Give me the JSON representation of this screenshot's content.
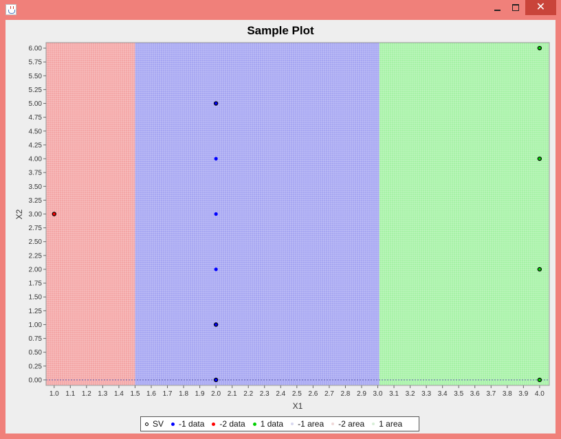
{
  "window": {
    "title": "",
    "icon": "java-icon",
    "controls": {
      "minimize": "minimize-icon",
      "maximize": "maximize-icon",
      "close": "✕"
    }
  },
  "colors": {
    "frame": "#f0807a",
    "region_neg2": "#f4a6a6",
    "region_neg1": "#a6a6f2",
    "region_pos1": "#a6f2a6",
    "point_neg1": "#0000ff",
    "point_neg2": "#ff0000",
    "point_pos1": "#00d000"
  },
  "chart_data": {
    "type": "scatter",
    "title": "Sample Plot",
    "xlabel": "X1",
    "ylabel": "X2",
    "xlim": [
      0.95,
      4.06
    ],
    "ylim": [
      -0.1,
      6.1
    ],
    "xticks": [
      1.0,
      1.1,
      1.2,
      1.3,
      1.4,
      1.5,
      1.6,
      1.7,
      1.8,
      1.9,
      2.0,
      2.1,
      2.2,
      2.3,
      2.4,
      2.5,
      2.6,
      2.7,
      2.8,
      2.9,
      3.0,
      3.1,
      3.2,
      3.3,
      3.4,
      3.5,
      3.6,
      3.7,
      3.8,
      3.9,
      4.0
    ],
    "yticks": [
      0.0,
      0.25,
      0.5,
      0.75,
      1.0,
      1.25,
      1.5,
      1.75,
      2.0,
      2.25,
      2.5,
      2.75,
      3.0,
      3.25,
      3.5,
      3.75,
      4.0,
      4.25,
      4.5,
      4.75,
      5.0,
      5.25,
      5.5,
      5.75,
      6.0
    ],
    "grid": true,
    "legend_position": "bottom",
    "regions": [
      {
        "name": "-2 area",
        "x": [
          0.95,
          1.5
        ],
        "color": "#f4a6a6"
      },
      {
        "name": "-1 area",
        "x": [
          1.5,
          3.01
        ],
        "color": "#a6a6f2"
      },
      {
        "name": "1 area",
        "x": [
          3.01,
          4.06
        ],
        "color": "#a6f2a6"
      }
    ],
    "series": [
      {
        "name": "SV",
        "marker": "outline",
        "color": "#000000",
        "points": [
          [
            2.0,
            5.0
          ],
          [
            2.0,
            1.0
          ],
          [
            2.0,
            0.0
          ],
          [
            4.0,
            6.0
          ],
          [
            4.0,
            4.0
          ],
          [
            4.0,
            2.0
          ],
          [
            4.0,
            0.0
          ],
          [
            1.0,
            3.0
          ]
        ]
      },
      {
        "name": "-1 data",
        "marker": "filled",
        "color": "#0000ff",
        "points": [
          [
            2.0,
            5.0
          ],
          [
            2.0,
            4.0
          ],
          [
            2.0,
            3.0
          ],
          [
            2.0,
            2.0
          ],
          [
            2.0,
            1.0
          ],
          [
            2.0,
            0.0
          ]
        ]
      },
      {
        "name": "-2 data",
        "marker": "filled",
        "color": "#ff0000",
        "points": [
          [
            1.0,
            3.0
          ]
        ]
      },
      {
        "name": "1 data",
        "marker": "filled",
        "color": "#00d000",
        "points": [
          [
            4.0,
            6.0
          ],
          [
            4.0,
            4.0
          ],
          [
            4.0,
            2.0
          ],
          [
            4.0,
            0.0
          ]
        ]
      }
    ],
    "legend": [
      {
        "label": "SV",
        "marker": "outline",
        "color": "#000000"
      },
      {
        "label": "-1 data",
        "marker": "filled",
        "color": "#0000ff"
      },
      {
        "label": "-2 data",
        "marker": "filled",
        "color": "#ff0000"
      },
      {
        "label": "1 data",
        "marker": "filled",
        "color": "#00d000"
      },
      {
        "label": "-1 area",
        "marker": "faint",
        "color": "#b0b0e0"
      },
      {
        "label": "-2 area",
        "marker": "faint",
        "color": "#e0b0b0"
      },
      {
        "label": "1 area",
        "marker": "faint",
        "color": "#b0e0b0"
      }
    ]
  }
}
